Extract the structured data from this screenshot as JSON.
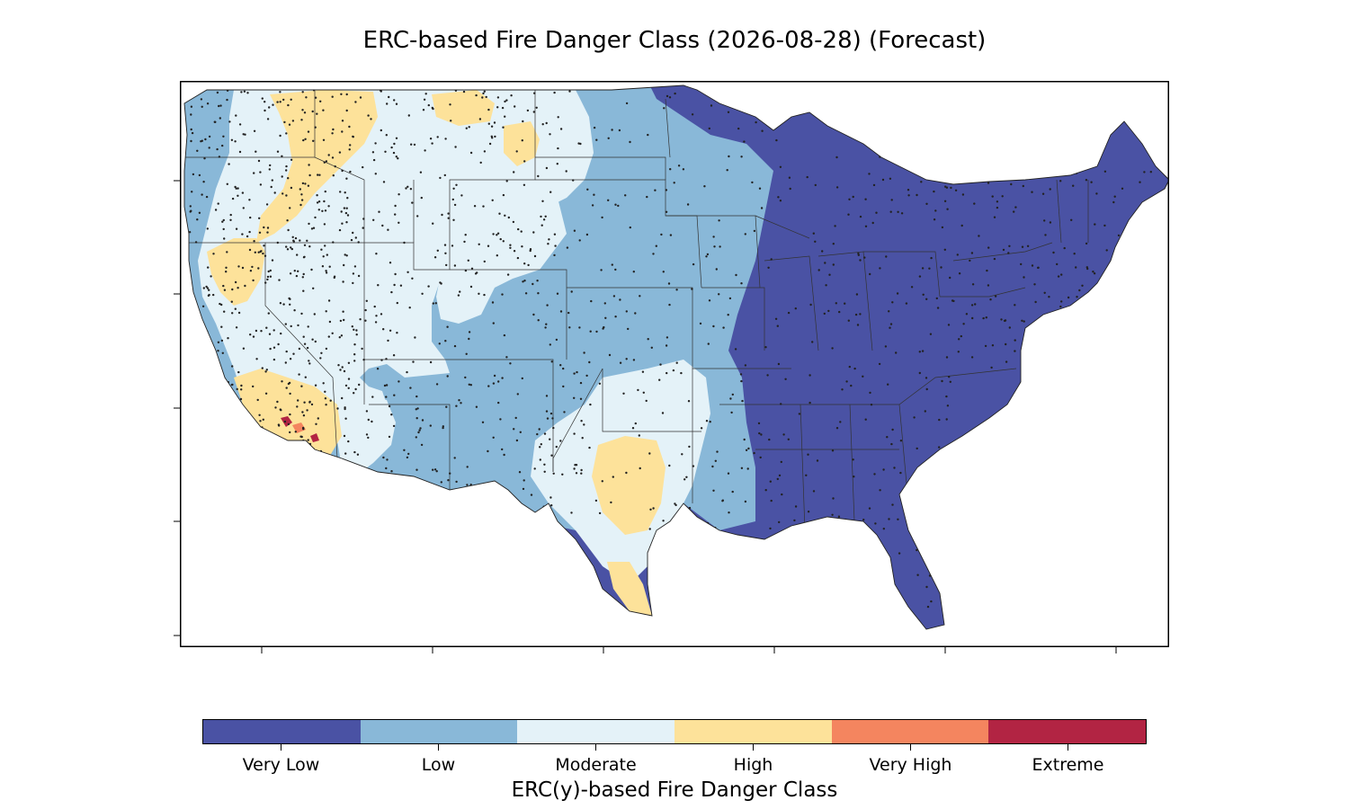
{
  "title": "ERC-based Fire Danger Class (2026-08-28) (Forecast)",
  "colorbar": {
    "label": "ERC(y)-based Fire Danger Class",
    "classes": [
      {
        "name": "Very Low",
        "color": "#4a52a4"
      },
      {
        "name": "Low",
        "color": "#89b8d8"
      },
      {
        "name": "Moderate",
        "color": "#e4f2f8"
      },
      {
        "name": "High",
        "color": "#fde29a"
      },
      {
        "name": "Very High",
        "color": "#f4855f"
      },
      {
        "name": "Extreme",
        "color": "#b22443"
      }
    ]
  },
  "map": {
    "region": "Contiguous United States",
    "dominant_class_by_area": {
      "east_and_southeast": "Very Low",
      "great_plains_and_midwest": "Low",
      "intermountain_west_and_southern_plains": "Moderate",
      "california_oregon_montana_central_texas": "High",
      "southern_california_hotspots": "Extreme"
    }
  }
}
